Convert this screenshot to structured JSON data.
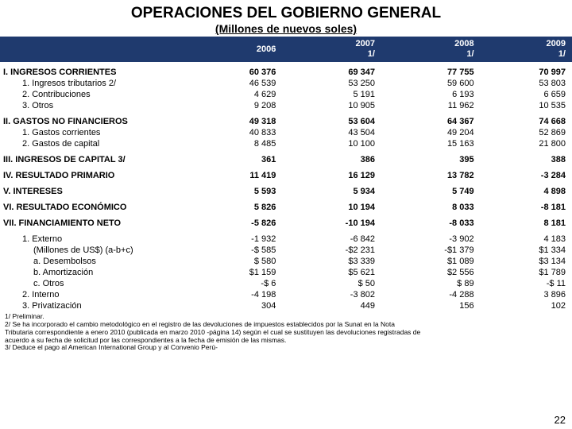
{
  "title": "OPERACIONES DEL GOBIERNO GENERAL",
  "subtitle": "(Millones de nuevos soles)",
  "columns": [
    "",
    "2006",
    "2007\n1/",
    "2008\n1/",
    "2009\n1/"
  ],
  "rows": [
    {
      "t": "spacer"
    },
    {
      "t": "main",
      "cells": [
        "I.  INGRESOS CORRIENTES",
        "60 376",
        "69 347",
        "77 755",
        "70 997"
      ]
    },
    {
      "t": "sub",
      "cells": [
        "1.  Ingresos tributarios 2/",
        "46 539",
        "53 250",
        "59 600",
        "53 803"
      ]
    },
    {
      "t": "sub",
      "cells": [
        "2.  Contribuciones",
        "4 629",
        "5 191",
        "6 193",
        "6 659"
      ]
    },
    {
      "t": "sub",
      "cells": [
        "3.  Otros",
        "9 208",
        "10 905",
        "11 962",
        "10 535"
      ]
    },
    {
      "t": "spacer"
    },
    {
      "t": "main",
      "cells": [
        "II.  GASTOS NO FINANCIEROS",
        "49 318",
        "53 604",
        "64 367",
        "74 668"
      ]
    },
    {
      "t": "sub",
      "cells": [
        "1.  Gastos corrientes",
        "40 833",
        "43 504",
        "49 204",
        "52 869"
      ]
    },
    {
      "t": "sub",
      "cells": [
        "2.  Gastos de capital",
        "8 485",
        "10 100",
        "15 163",
        "21 800"
      ]
    },
    {
      "t": "spacer"
    },
    {
      "t": "main",
      "cells": [
        "III.  INGRESOS DE CAPITAL 3/",
        "361",
        "386",
        "395",
        "388"
      ]
    },
    {
      "t": "spacer"
    },
    {
      "t": "main",
      "cells": [
        "IV.  RESULTADO PRIMARIO",
        "11 419",
        "16 129",
        "13 782",
        "-3 284"
      ]
    },
    {
      "t": "spacer"
    },
    {
      "t": "main",
      "cells": [
        "V.  INTERESES",
        "5 593",
        "5 934",
        "5 749",
        "4 898"
      ]
    },
    {
      "t": "spacer"
    },
    {
      "t": "main",
      "cells": [
        "VI.  RESULTADO ECONÓMICO",
        "5 826",
        "10 194",
        "8 033",
        "-8 181"
      ]
    },
    {
      "t": "spacer"
    },
    {
      "t": "main",
      "cells": [
        "VII.   FINANCIAMIENTO NETO",
        "-5 826",
        "-10 194",
        "-8 033",
        "8 181"
      ]
    },
    {
      "t": "spacer"
    },
    {
      "t": "sub",
      "cells": [
        "1.  Externo",
        "-1 932",
        "-6 842",
        "-3 902",
        "4 183"
      ]
    },
    {
      "t": "sub2",
      "cells": [
        "(Millones de US$) (a-b+c)",
        "-$ 585",
        "-$2 231",
        "-$1 379",
        "$1 334"
      ]
    },
    {
      "t": "sub2",
      "cells": [
        "a. Desembolsos",
        "$ 580",
        "$3 339",
        "$1 089",
        "$3 134"
      ]
    },
    {
      "t": "sub2",
      "cells": [
        "b. Amortización",
        "$1 159",
        "$5 621",
        "$2 556",
        "$1 789"
      ]
    },
    {
      "t": "sub2",
      "cells": [
        "c. Otros",
        "-$ 6",
        "$ 50",
        "$ 89",
        "-$ 11"
      ]
    },
    {
      "t": "sub",
      "cells": [
        "2.  Interno",
        "-4 198",
        "-3 802",
        "-4 288",
        "3 896"
      ]
    },
    {
      "t": "sub",
      "cells": [
        "3.  Privatización",
        "304",
        "449",
        "156",
        "102"
      ]
    }
  ],
  "footnotes": [
    "1/ Preliminar.",
    "2/ Se ha incorporado el cambio metodológico en el registro de las devoluciones de impuestos establecidos por la Sunat en la Nota",
    "Tributaria correspondiente a enero 2010 (publicada en marzo 2010 -página 14) según el cual se sustituyen las devoluciones registradas de",
    "acuerdo a su fecha de solicitud por las correspondientes a la fecha de emisión de las mismas.",
    "3/ Deduce el pago al American International Group y al Convenio Perú-"
  ],
  "pagenum": "22"
}
